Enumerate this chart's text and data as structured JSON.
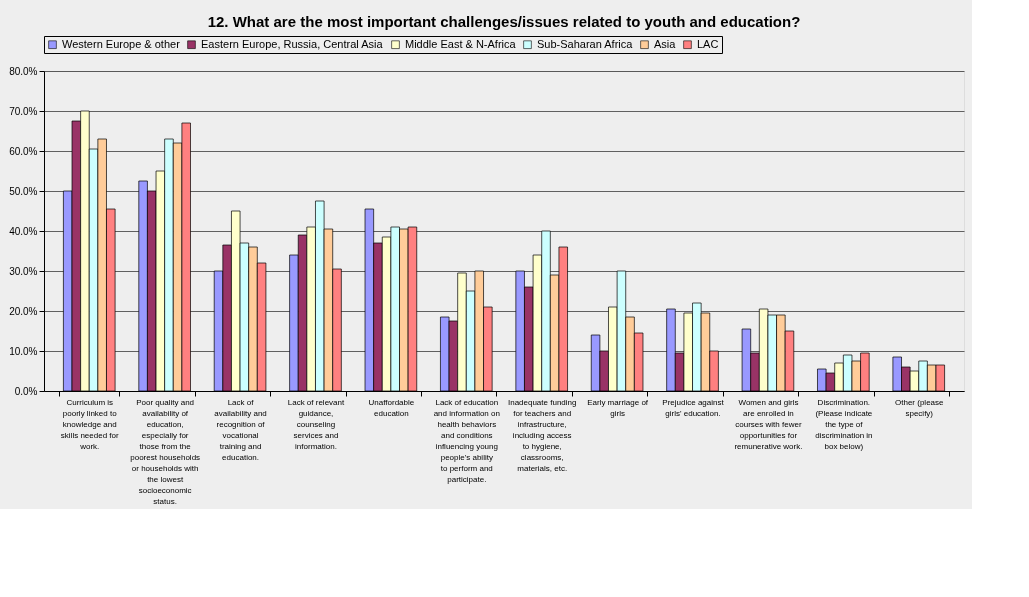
{
  "chart_data": {
    "type": "bar",
    "title": "12. What are the most important challenges/issues related to youth and education?",
    "categories": [
      "Curriculum is poorly linked to knowledge and skills needed for work.",
      "Poor quality and availability of education, especially for those from the poorest households or households with the lowest socioeconomic status.",
      "Lack of availability and recognition of vocational training and education.",
      "Lack of relevant guidance, counseling services and information.",
      "Unaffordable education",
      "Lack of education and information on health behaviors and conditions influencing young people's ability to perform and participate.",
      "Inadequate funding for teachers and infrastructure, including access to hygiene, classrooms, materials, etc.",
      "Early marriage of girls",
      "Prejudice against girls' education.",
      "Women and girls are enrolled in courses with fewer opportunities for remunerative work.",
      "Discrimination. (Please indicate the type of discrimination in box below)",
      "Other (please specify)"
    ],
    "series": [
      {
        "name": "Western Europe & other",
        "color": "#9999ff",
        "values": [
          50,
          52.5,
          30,
          34,
          45.5,
          18.5,
          30,
          14,
          20.5,
          15.5,
          5.5,
          8.5
        ]
      },
      {
        "name": "Eastern Europe, Russia, Central Asia",
        "color": "#993366",
        "values": [
          67.5,
          50,
          36.5,
          39,
          37,
          17.5,
          26,
          10,
          9.5,
          9.5,
          4.5,
          6
        ]
      },
      {
        "name": "Middle East & N-Africa",
        "color": "#ffffcc",
        "values": [
          70,
          55,
          45,
          41,
          38.5,
          29.5,
          34,
          21,
          19.5,
          20.5,
          7,
          5
        ]
      },
      {
        "name": "Sub-Saharan Africa",
        "color": "#ccffff",
        "values": [
          60.5,
          63,
          37,
          47.5,
          41,
          25,
          40,
          30,
          22,
          19,
          9,
          7.5
        ]
      },
      {
        "name": "Asia",
        "color": "#ffcc99",
        "values": [
          63,
          62,
          36,
          40.5,
          40.5,
          30,
          29,
          18.5,
          19.5,
          19,
          7.5,
          6.5
        ]
      },
      {
        "name": "LAC",
        "color": "#ff8080",
        "values": [
          45.5,
          67,
          32,
          30.5,
          41,
          21,
          36,
          14.5,
          10,
          15,
          9.5,
          6.5
        ]
      }
    ],
    "ylim": [
      0,
      80
    ],
    "yticks": [
      {
        "value": 0,
        "label": "0.0%"
      },
      {
        "value": 10,
        "label": "10.0%"
      },
      {
        "value": 20,
        "label": "20.0%"
      },
      {
        "value": 30,
        "label": "30.0%"
      },
      {
        "value": 40,
        "label": "40.0%"
      },
      {
        "value": 50,
        "label": "50.0%"
      },
      {
        "value": 60,
        "label": "60.0%"
      },
      {
        "value": 70,
        "label": "70.0%"
      },
      {
        "value": 80,
        "label": "80.0%"
      }
    ],
    "grid": "y",
    "legend": "top"
  }
}
